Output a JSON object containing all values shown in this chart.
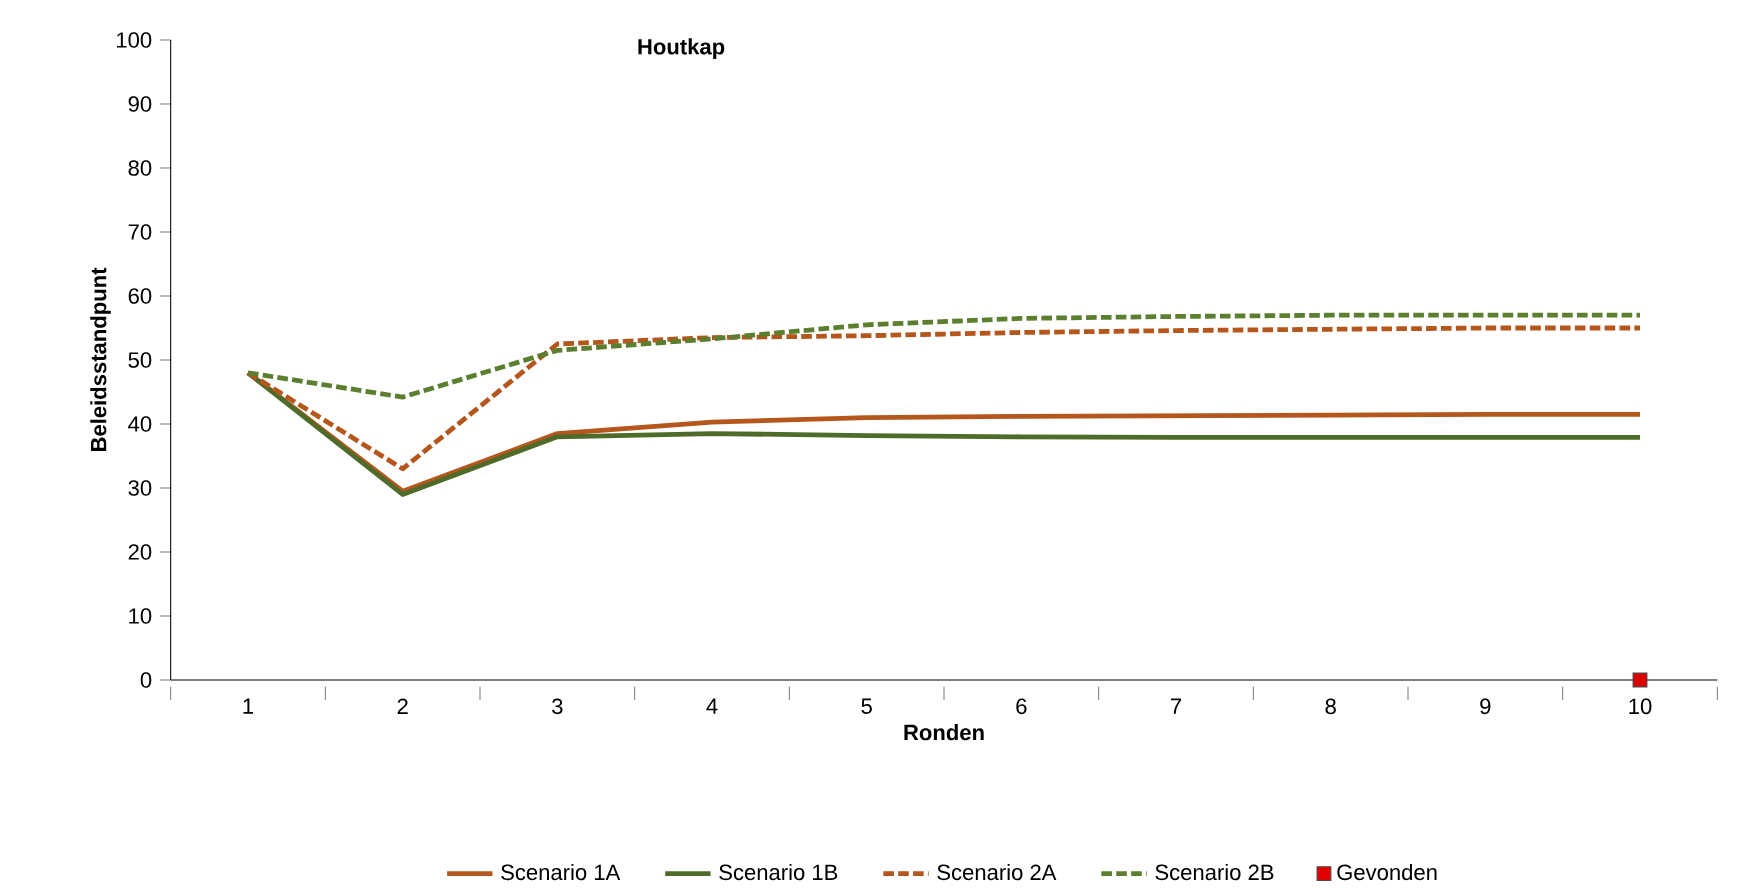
{
  "chart_data": {
    "type": "line",
    "title": "Houtkap",
    "xlabel": "Ronden",
    "ylabel": "Beleidsstandpunt",
    "categories": [
      "1",
      "2",
      "3",
      "4",
      "5",
      "6",
      "7",
      "8",
      "9",
      "10"
    ],
    "ylim": [
      0,
      100
    ],
    "yticks": [
      0,
      10,
      20,
      30,
      40,
      50,
      60,
      70,
      80,
      90,
      100
    ],
    "legend": "bottom",
    "marker": "none",
    "series": [
      {
        "name": "Scenario 1A",
        "color": "#b5571c",
        "line_style": "solid",
        "values": [
          48,
          29.5,
          38.5,
          40.3,
          41,
          41.2,
          41.3,
          41.4,
          41.5,
          41.5
        ]
      },
      {
        "name": "Scenario 1B",
        "color": "#4e6b2a",
        "line_style": "solid",
        "values": [
          48,
          29,
          38,
          38.5,
          38.2,
          38,
          37.9,
          37.9,
          37.9,
          37.9
        ]
      },
      {
        "name": "Scenario 2A",
        "color": "#b5571c",
        "line_style": "dashed",
        "values": [
          48,
          33,
          52.5,
          53.5,
          53.8,
          54.3,
          54.6,
          54.8,
          55,
          55
        ]
      },
      {
        "name": "Scenario 2B",
        "color": "#5b7f2e",
        "line_style": "dashed",
        "values": [
          48,
          44.2,
          51.5,
          53.3,
          55.5,
          56.5,
          56.8,
          57,
          57,
          57
        ]
      },
      {
        "name": "Gevonden",
        "type": "scatter",
        "marker": "square",
        "color": "#e00000",
        "x": [
          "10"
        ],
        "values": [
          0
        ]
      }
    ]
  }
}
